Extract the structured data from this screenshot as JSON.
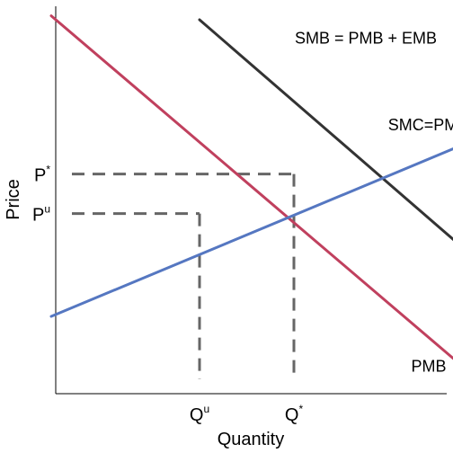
{
  "chart_data": {
    "type": "line",
    "title": "",
    "xlabel": "Quantity",
    "ylabel": "Price",
    "xlim": [
      0,
      10
    ],
    "ylim": [
      0,
      10
    ],
    "grid": false,
    "legend": "none",
    "series": [
      {
        "name": "PMB",
        "color": "#c0405e",
        "x": [
          0.5,
          10
        ],
        "y": [
          9.6,
          0.4
        ]
      },
      {
        "name": "SMB = PMB + EMB",
        "color": "#333333",
        "x": [
          3.8,
          10
        ],
        "y": [
          9.5,
          3.4
        ]
      },
      {
        "name": "SMC=PMC",
        "color": "#5577c1",
        "x": [
          0.5,
          10
        ],
        "y": [
          2.0,
          6.5
        ]
      }
    ],
    "series_labels": [
      {
        "series": "SMB = PMB + EMB",
        "x": 7.5,
        "y": 8.9
      },
      {
        "series": "SMC=PMC",
        "x": 8.9,
        "y": 6.7
      },
      {
        "series": "PMB",
        "x": 8.9,
        "y": 0.6
      }
    ],
    "reference_points": [
      {
        "x": 5.9,
        "y": 5.6,
        "x_label": "Q",
        "x_sup": "*",
        "y_label": "P",
        "y_sup": "*"
      },
      {
        "x": 3.8,
        "y": 4.6,
        "x_label": "Q",
        "x_sup": "u",
        "y_label": "P",
        "y_sup": "u"
      }
    ],
    "dashed_color": "#666666"
  }
}
